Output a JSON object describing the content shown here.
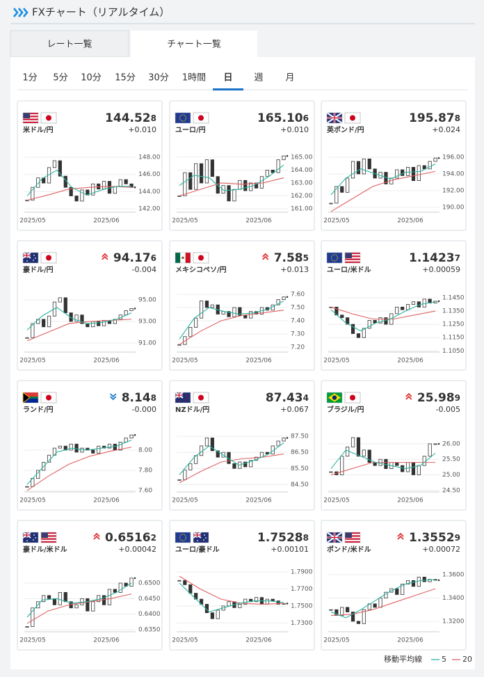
{
  "header": {
    "title": "FXチャート（リアルタイム）"
  },
  "tabs": [
    "レート一覧",
    "チャート一覧"
  ],
  "active_tab": 1,
  "timeframes": [
    "1分",
    "5分",
    "10分",
    "15分",
    "30分",
    "1時間",
    "日",
    "週",
    "月"
  ],
  "active_timeframe": 6,
  "legend": {
    "title": "移動平均線",
    "items": [
      {
        "label": "5",
        "color": "#2ab5a0"
      },
      {
        "label": "20",
        "color": "#e06060"
      }
    ]
  },
  "cards": [
    {
      "name": "米ドル/円",
      "flags": [
        "us",
        "jp"
      ],
      "price_main": "144.52",
      "price_sub": "8",
      "change": "+0.010",
      "ylim": [
        141.6,
        149.3
      ],
      "yticks": [
        {
          "value": 148,
          "label": "148.00"
        },
        {
          "value": 146,
          "label": "146.00"
        },
        {
          "value": 144,
          "label": "144.00"
        },
        {
          "value": 142,
          "label": "142.00"
        }
      ],
      "x_labels": [
        "2025/05",
        "2025/06"
      ],
      "close": [
        143.0,
        144.5,
        145.6,
        145.0,
        146.8,
        147.6,
        145.8,
        144.5,
        143.5,
        142.9,
        144.2,
        143.6,
        144.9,
        144.3,
        145.2,
        143.8,
        144.6,
        145.4,
        144.9,
        144.5
      ],
      "ma5": [
        143.5,
        145.5,
        146.5,
        144.5,
        143.6,
        144.2,
        144.6,
        144.6
      ],
      "ma20": [
        143.0,
        143.6,
        144.3,
        144.5,
        144.6,
        144.5
      ]
    },
    {
      "name": "ユーロ/円",
      "flags": [
        "eu",
        "jp"
      ],
      "price_main": "165.10",
      "price_sub": "6",
      "change": "+0.010",
      "ylim": [
        160.73,
        165.86
      ],
      "yticks": [
        {
          "value": 165,
          "label": "165.00"
        },
        {
          "value": 164,
          "label": "164.00"
        },
        {
          "value": 163,
          "label": "163.00"
        },
        {
          "value": 162,
          "label": "162.00"
        },
        {
          "value": 161,
          "label": "161.00"
        }
      ],
      "x_labels": [
        "2025/05",
        "2025/06"
      ],
      "close": [
        162.0,
        163.8,
        162.5,
        164.5,
        163.0,
        164.8,
        163.5,
        162.2,
        162.8,
        161.6,
        162.5,
        163.2,
        162.4,
        163.0,
        162.6,
        163.5,
        164.0,
        163.8,
        164.8,
        165.1
      ],
      "ma5": [
        162.8,
        163.6,
        163.4,
        162.4,
        162.5,
        162.8,
        163.5,
        164.4
      ],
      "ma20": [
        162.0,
        162.5,
        163.0,
        162.9,
        163.0,
        163.4
      ]
    },
    {
      "name": "英ポンド/円",
      "flags": [
        "gb",
        "jp"
      ],
      "price_main": "195.87",
      "price_sub": "8",
      "change": "+0.024",
      "ylim": [
        189.42,
        197.33
      ],
      "yticks": [
        {
          "value": 196,
          "label": "196.00"
        },
        {
          "value": 194,
          "label": "194.00"
        },
        {
          "value": 192,
          "label": "192.00"
        },
        {
          "value": 190,
          "label": "190.00"
        }
      ],
      "x_labels": [
        "2025/05",
        "2025/06"
      ],
      "close": [
        190.5,
        192.5,
        191.8,
        193.5,
        195.5,
        194.0,
        195.8,
        194.6,
        193.5,
        194.2,
        192.8,
        193.5,
        194.5,
        193.8,
        194.8,
        193.2,
        195.0,
        194.6,
        195.5,
        195.9
      ],
      "ma5": [
        191.5,
        193.5,
        194.6,
        194.0,
        193.4,
        194.2,
        194.3,
        195.2
      ],
      "ma20": [
        189.5,
        191.0,
        192.5,
        193.3,
        193.8,
        194.3
      ]
    },
    {
      "name": "豪ドル/円",
      "flags": [
        "au",
        "jp"
      ],
      "trend": "up",
      "price_main": "94.17",
      "price_sub": "6",
      "change": "-0.004",
      "ylim": [
        90.16,
        96.29
      ],
      "yticks": [
        {
          "value": 95,
          "label": "95.00"
        },
        {
          "value": 93,
          "label": "93.00"
        },
        {
          "value": 91,
          "label": "91.00"
        }
      ],
      "x_labels": [
        "2025/05",
        "2025/06"
      ],
      "close": [
        91.5,
        92.8,
        93.2,
        92.5,
        93.5,
        94.8,
        95.2,
        93.8,
        93.0,
        93.6,
        92.8,
        92.5,
        93.0,
        92.6,
        93.1,
        92.8,
        93.2,
        93.6,
        94.0,
        94.2
      ],
      "ma5": [
        92.2,
        93.5,
        94.3,
        93.3,
        92.8,
        92.9,
        93.2,
        93.8
      ],
      "ma20": [
        91.2,
        92.0,
        92.8,
        93.0,
        93.1,
        93.2
      ]
    },
    {
      "name": "メキシコペソ/円",
      "flags": [
        "mx",
        "jp"
      ],
      "trend": "up",
      "price_main": "7.58",
      "price_sub": "5",
      "change": "+0.013",
      "ylim": [
        7.163,
        7.663
      ],
      "yticks": [
        {
          "value": 7.6,
          "label": "7.60"
        },
        {
          "value": 7.5,
          "label": "7.50"
        },
        {
          "value": 7.4,
          "label": "7.40"
        },
        {
          "value": 7.3,
          "label": "7.30"
        },
        {
          "value": 7.2,
          "label": "7.20"
        }
      ],
      "x_labels": [
        "2025/05",
        "2025/06"
      ],
      "close": [
        7.22,
        7.28,
        7.35,
        7.42,
        7.55,
        7.5,
        7.52,
        7.45,
        7.47,
        7.43,
        7.5,
        7.44,
        7.42,
        7.47,
        7.45,
        7.5,
        7.48,
        7.52,
        7.56,
        7.58
      ],
      "ma5": [
        7.26,
        7.42,
        7.5,
        7.47,
        7.45,
        7.46,
        7.49,
        7.55
      ],
      "ma20": [
        7.22,
        7.32,
        7.4,
        7.44,
        7.46,
        7.48
      ]
    },
    {
      "name": "ユーロ/米ドル",
      "flags": [
        "eu",
        "us"
      ],
      "price_main": "1.1423",
      "price_sub": "7",
      "change": "+0.00059",
      "ylim": [
        1.1041,
        1.1539
      ],
      "yticks": [
        {
          "value": 1.145,
          "label": "1.1450"
        },
        {
          "value": 1.135,
          "label": "1.1350"
        },
        {
          "value": 1.125,
          "label": "1.1250"
        },
        {
          "value": 1.115,
          "label": "1.1150"
        },
        {
          "value": 1.105,
          "label": "1.1050"
        }
      ],
      "x_labels": [
        "2025/05",
        "2025/06"
      ],
      "close": [
        1.138,
        1.132,
        1.13,
        1.125,
        1.118,
        1.115,
        1.122,
        1.128,
        1.126,
        1.13,
        1.125,
        1.133,
        1.138,
        1.136,
        1.14,
        1.142,
        1.138,
        1.144,
        1.141,
        1.1424
      ],
      "ma5": [
        1.136,
        1.126,
        1.12,
        1.126,
        1.129,
        1.135,
        1.14,
        1.142
      ],
      "ma20": [
        1.138,
        1.133,
        1.129,
        1.129,
        1.132,
        1.135
      ]
    },
    {
      "name": "ランド/円",
      "flags": [
        "za",
        "jp"
      ],
      "trend": "down",
      "price_main": "8.14",
      "price_sub": "8",
      "change": "-0.000",
      "ylim": [
        7.586,
        8.241
      ],
      "yticks": [
        {
          "value": 8,
          "label": "8.00"
        },
        {
          "value": 7.8,
          "label": "7.80"
        },
        {
          "value": 7.6,
          "label": "7.60"
        }
      ],
      "x_labels": [
        "2025/05",
        "2025/06"
      ],
      "close": [
        7.64,
        7.72,
        7.8,
        7.88,
        7.95,
        8.02,
        8.04,
        8.0,
        8.06,
        7.98,
        8.02,
        8.0,
        7.97,
        8.04,
        8.02,
        8.06,
        8.0,
        8.08,
        8.12,
        8.15
      ],
      "ma5": [
        7.66,
        7.82,
        7.98,
        8.02,
        8.0,
        8.02,
        8.04,
        8.1
      ],
      "ma20": [
        7.6,
        7.74,
        7.86,
        7.94,
        7.99,
        8.03
      ]
    },
    {
      "name": "NZドル/円",
      "flags": [
        "nz",
        "jp"
      ],
      "price_main": "87.43",
      "price_sub": "4",
      "change": "+0.067",
      "ylim": [
        84.04,
        88.15
      ],
      "yticks": [
        {
          "value": 87.5,
          "label": "87.50"
        },
        {
          "value": 86.5,
          "label": "86.50"
        },
        {
          "value": 85.5,
          "label": "85.50"
        },
        {
          "value": 84.5,
          "label": "84.50"
        }
      ],
      "x_labels": [
        "2025/05",
        "2025/06"
      ],
      "close": [
        84.8,
        85.4,
        85.8,
        86.3,
        86.9,
        87.4,
        86.6,
        86.2,
        86.5,
        85.8,
        85.5,
        85.9,
        85.6,
        86.0,
        86.2,
        86.5,
        86.4,
        86.9,
        87.2,
        87.4
      ],
      "ma5": [
        85.1,
        86.2,
        86.9,
        86.3,
        85.7,
        86.0,
        86.4,
        87.1
      ],
      "ma20": [
        84.6,
        85.3,
        85.9,
        86.1,
        86.2,
        86.4
      ]
    },
    {
      "name": "ブラジル/円",
      "flags": [
        "br",
        "jp"
      ],
      "trend": "up",
      "price_main": "25.98",
      "price_sub": "9",
      "change": "-0.005",
      "ylim": [
        24.45,
        26.58
      ],
      "yticks": [
        {
          "value": 26,
          "label": "26.00"
        },
        {
          "value": 25.5,
          "label": "25.50"
        },
        {
          "value": 25,
          "label": "25.00"
        },
        {
          "value": 24.5,
          "label": "24.50"
        }
      ],
      "x_labels": [
        "2025/05",
        "2025/06"
      ],
      "close": [
        25.1,
        25.0,
        25.6,
        25.9,
        26.2,
        25.6,
        25.8,
        25.4,
        25.3,
        25.5,
        25.2,
        25.4,
        25.3,
        25.1,
        25.4,
        25.0,
        25.3,
        25.6,
        26.0,
        26.0
      ],
      "ma5": [
        25.2,
        25.8,
        25.6,
        25.4,
        25.3,
        25.2,
        25.3,
        25.7
      ],
      "ma20": [
        25.0,
        25.2,
        25.4,
        25.4,
        25.4,
        25.4
      ]
    },
    {
      "name": "豪ドル/米ドル",
      "flags": [
        "au",
        "us"
      ],
      "trend": "up",
      "price_main": "0.6516",
      "price_sub": "2",
      "change": "+0.00042",
      "ylim": [
        0.63433,
        0.6556
      ],
      "yticks": [
        {
          "value": 0.65,
          "label": "0.6500"
        },
        {
          "value": 0.645,
          "label": "0.6450"
        },
        {
          "value": 0.64,
          "label": "0.6400"
        },
        {
          "value": 0.635,
          "label": "0.6350"
        }
      ],
      "x_labels": [
        "2025/05",
        "2025/06"
      ],
      "close": [
        0.636,
        0.642,
        0.644,
        0.646,
        0.645,
        0.643,
        0.647,
        0.644,
        0.642,
        0.643,
        0.645,
        0.641,
        0.644,
        0.646,
        0.643,
        0.648,
        0.647,
        0.65,
        0.649,
        0.6516
      ],
      "ma5": [
        0.639,
        0.6445,
        0.645,
        0.6435,
        0.644,
        0.645,
        0.647,
        0.65
      ],
      "ma20": [
        0.637,
        0.641,
        0.643,
        0.644,
        0.645,
        0.6465
      ]
    },
    {
      "name": "ユーロ/豪ドル",
      "flags": [
        "eu",
        "au"
      ],
      "price_main": "1.7528",
      "price_sub": "8",
      "change": "+0.00101",
      "ylim": [
        1.7196,
        1.7974
      ],
      "yticks": [
        {
          "value": 1.79,
          "label": "1.7900"
        },
        {
          "value": 1.77,
          "label": "1.7700"
        },
        {
          "value": 1.75,
          "label": "1.7500"
        },
        {
          "value": 1.73,
          "label": "1.7300"
        }
      ],
      "x_labels": [
        "2025/05",
        "2025/06"
      ],
      "close": [
        1.78,
        1.775,
        1.765,
        1.758,
        1.752,
        1.742,
        1.735,
        1.745,
        1.75,
        1.755,
        1.748,
        1.752,
        1.758,
        1.755,
        1.76,
        1.752,
        1.758,
        1.756,
        1.752,
        1.7529
      ],
      "ma5": [
        1.777,
        1.76,
        1.743,
        1.748,
        1.753,
        1.756,
        1.756,
        1.754
      ],
      "ma20": [
        1.785,
        1.77,
        1.758,
        1.753,
        1.752,
        1.753
      ]
    },
    {
      "name": "ポンド/米ドル",
      "flags": [
        "gb",
        "us"
      ],
      "trend": "up",
      "price_main": "1.3552",
      "price_sub": "9",
      "change": "+0.00072",
      "ylim": [
        1.311,
        1.3678
      ],
      "yticks": [
        {
          "value": 1.36,
          "label": "1.3600"
        },
        {
          "value": 1.34,
          "label": "1.3400"
        },
        {
          "value": 1.32,
          "label": "1.3200"
        }
      ],
      "x_labels": [
        "2025/05",
        "2025/06"
      ],
      "close": [
        1.33,
        1.325,
        1.332,
        1.328,
        1.32,
        1.318,
        1.33,
        1.335,
        1.332,
        1.34,
        1.345,
        1.348,
        1.343,
        1.352,
        1.355,
        1.35,
        1.358,
        1.354,
        1.356,
        1.3553
      ],
      "ma5": [
        1.328,
        1.323,
        1.33,
        1.338,
        1.346,
        1.352,
        1.355,
        1.356
      ],
      "ma20": [
        1.325,
        1.326,
        1.33,
        1.336,
        1.342,
        1.348
      ]
    }
  ]
}
